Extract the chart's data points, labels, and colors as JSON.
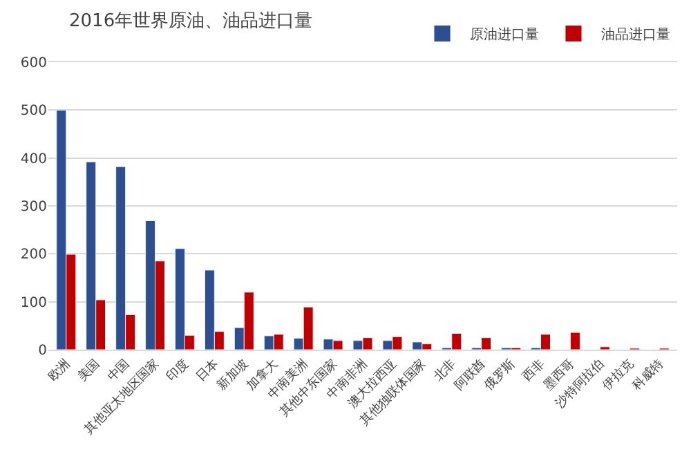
{
  "chart_data": {
    "type": "bar",
    "title": "2016年世界原油、油品进口量",
    "categories": [
      "欧洲",
      "美国",
      "中国",
      "其他亚太地区国家",
      "印度",
      "日本",
      "新加坡",
      "加拿大",
      "中南美洲",
      "其他中东国家",
      "中南非洲",
      "澳大拉西亚",
      "其他独联体国家",
      "北非",
      "阿联酋",
      "俄罗斯",
      "西非",
      "墨西哥",
      "沙特阿拉伯",
      "伊拉克",
      "科威特"
    ],
    "series": [
      {
        "name": "原油进口量",
        "color": "#2e4f8f",
        "values": [
          500,
          392,
          382,
          269,
          211,
          166,
          46,
          29,
          24,
          22,
          19,
          19,
          16,
          4,
          4,
          4,
          4,
          null,
          null,
          null,
          null
        ]
      },
      {
        "name": "油品进口量",
        "color": "#c00000",
        "values": [
          199,
          104,
          73,
          185,
          30,
          38,
          120,
          32,
          89,
          19,
          25,
          27,
          12,
          34,
          25,
          4,
          32,
          36,
          6,
          3,
          3
        ]
      }
    ],
    "ylim": [
      0,
      600
    ],
    "yticks": [
      0,
      100,
      200,
      300,
      400,
      500,
      600
    ],
    "grid": "y",
    "legend": "top right"
  }
}
